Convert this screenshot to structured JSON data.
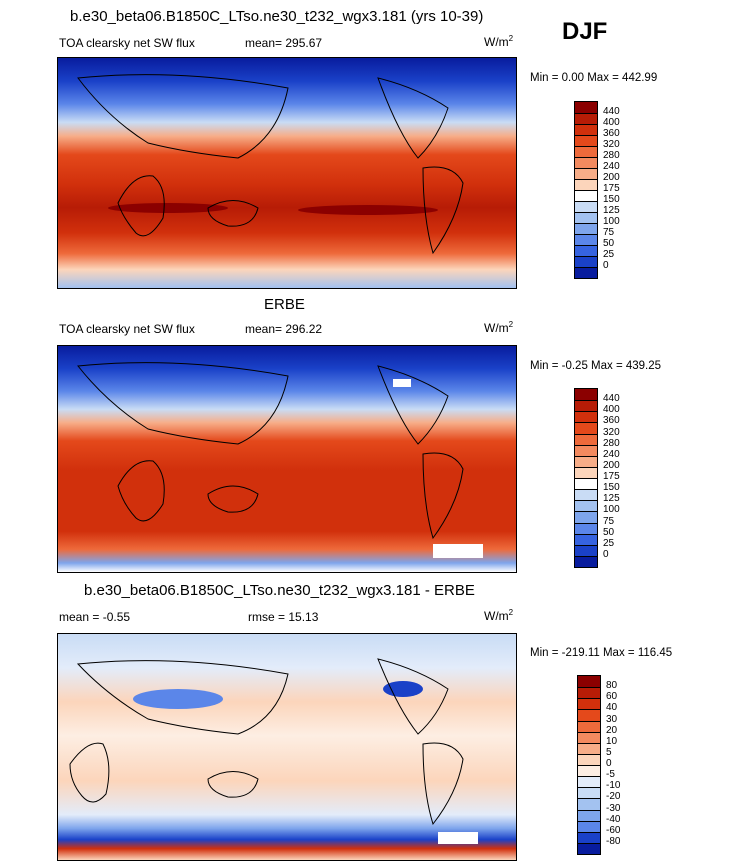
{
  "season": "DJF",
  "panels": [
    {
      "title": "b.e30_beta06.B1850C_LTso.ne30_t232_wgx3.181 (yrs 10-39)",
      "variable": "TOA clearsky net SW flux",
      "stat": "mean= 295.67",
      "stat2": "",
      "units_base": "W/m",
      "units_exp": "2",
      "minmax": "Min =   0.00 Max = 442.99",
      "colorbar": {
        "labels": [
          "440",
          "400",
          "360",
          "320",
          "280",
          "240",
          "200",
          "175",
          "150",
          "125",
          "100",
          "75",
          "50",
          "25",
          "0"
        ],
        "colors": [
          "#8b0000",
          "#b71c06",
          "#d1300c",
          "#e4491b",
          "#ee6a3b",
          "#f38a5f",
          "#f7ad88",
          "#fcd5bb",
          "#ffffff",
          "#c9dcf5",
          "#a3c2f0",
          "#7ea5ec",
          "#5b86e9",
          "#3663e0",
          "#1a41c8",
          "#081c9e"
        ]
      }
    },
    {
      "title": "ERBE",
      "variable": "TOA clearsky net SW flux",
      "stat": "mean= 296.22",
      "stat2": "",
      "units_base": "W/m",
      "units_exp": "2",
      "minmax": "Min =  -0.25 Max = 439.25",
      "colorbar": {
        "labels": [
          "440",
          "400",
          "360",
          "320",
          "280",
          "240",
          "200",
          "175",
          "150",
          "125",
          "100",
          "75",
          "50",
          "25",
          "0"
        ],
        "colors": [
          "#8b0000",
          "#b71c06",
          "#d1300c",
          "#e4491b",
          "#ee6a3b",
          "#f38a5f",
          "#f7ad88",
          "#fcd5bb",
          "#ffffff",
          "#c9dcf5",
          "#a3c2f0",
          "#7ea5ec",
          "#5b86e9",
          "#3663e0",
          "#1a41c8",
          "#081c9e"
        ]
      }
    },
    {
      "title": "b.e30_beta06.B1850C_LTso.ne30_t232_wgx3.181 - ERBE",
      "variable": "mean =  -0.55",
      "stat": "rmse =  15.13",
      "stat2": "",
      "units_base": "W/m",
      "units_exp": "2",
      "minmax": "Min = -219.11 Max = 116.45",
      "colorbar": {
        "labels": [
          "80",
          "60",
          "40",
          "30",
          "20",
          "10",
          "5",
          "0",
          "-5",
          "-10",
          "-20",
          "-30",
          "-40",
          "-60",
          "-80"
        ],
        "colors": [
          "#8b0000",
          "#b71c06",
          "#d1300c",
          "#e4491b",
          "#ee6a3b",
          "#f38a5f",
          "#f7ad88",
          "#fcd5bb",
          "#fdeee3",
          "#e3ecfa",
          "#c9dcf5",
          "#a3c2f0",
          "#7ea5ec",
          "#5b86e9",
          "#1a41c8",
          "#081c9e"
        ]
      }
    }
  ]
}
